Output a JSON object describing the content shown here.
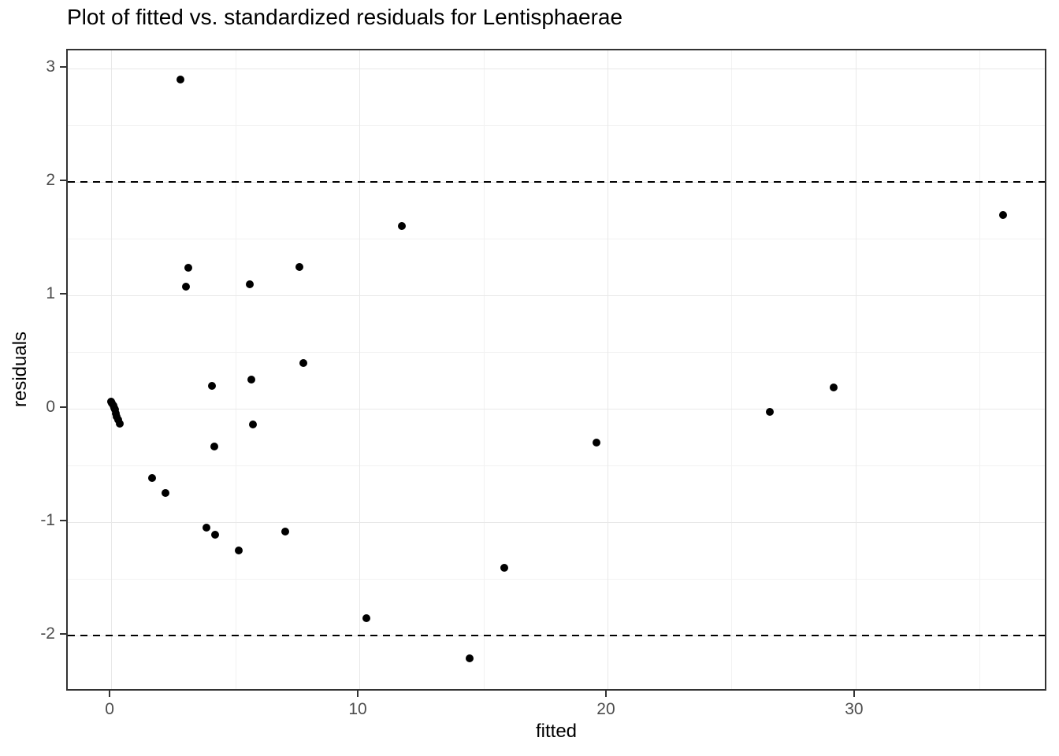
{
  "chart_data": {
    "type": "scatter",
    "title": "Plot of fitted vs. standardized residuals for Lentisphaerae",
    "xlabel": "fitted",
    "ylabel": "residuals",
    "xlim": [
      -1.75,
      37.75
    ],
    "ylim": [
      -2.5,
      3.16
    ],
    "grid": true,
    "legend": "none",
    "x_major_ticks": [
      {
        "value": 0,
        "label": "0"
      },
      {
        "value": 10,
        "label": "10"
      },
      {
        "value": 20,
        "label": "20"
      },
      {
        "value": 30,
        "label": "30"
      }
    ],
    "x_minor_gridlines": [
      5,
      15,
      25,
      35
    ],
    "y_major_ticks": [
      {
        "value": 3,
        "label": "3"
      },
      {
        "value": 2,
        "label": "2"
      },
      {
        "value": 1,
        "label": "1"
      },
      {
        "value": 0,
        "label": "0"
      },
      {
        "value": -1,
        "label": "-1"
      },
      {
        "value": -2,
        "label": "-2"
      }
    ],
    "y_minor_gridlines": [
      2.5,
      1.5,
      0.5,
      -0.5,
      -1.5
    ],
    "reference_lines": [
      {
        "y": 2,
        "style": "dashed",
        "color": "#000000"
      },
      {
        "y": -2,
        "style": "dashed",
        "color": "#000000"
      }
    ],
    "points": [
      [
        0.0,
        0.06
      ],
      [
        0.04,
        0.05
      ],
      [
        0.08,
        0.03
      ],
      [
        0.12,
        0.01
      ],
      [
        0.15,
        -0.01
      ],
      [
        0.19,
        -0.04
      ],
      [
        0.23,
        -0.07
      ],
      [
        0.28,
        -0.1
      ],
      [
        0.33,
        -0.13
      ],
      [
        1.65,
        -0.61
      ],
      [
        2.2,
        -0.74
      ],
      [
        2.8,
        2.9
      ],
      [
        3.0,
        1.08
      ],
      [
        3.1,
        1.24
      ],
      [
        3.85,
        -1.05
      ],
      [
        4.05,
        0.2
      ],
      [
        4.15,
        -0.33
      ],
      [
        4.2,
        -1.11
      ],
      [
        5.15,
        -1.25
      ],
      [
        5.6,
        1.1
      ],
      [
        5.65,
        0.26
      ],
      [
        5.7,
        -0.14
      ],
      [
        7.0,
        -1.08
      ],
      [
        7.6,
        1.25
      ],
      [
        7.75,
        0.4
      ],
      [
        10.3,
        -1.85
      ],
      [
        11.7,
        1.61
      ],
      [
        14.45,
        -2.2
      ],
      [
        15.85,
        -1.4
      ],
      [
        19.55,
        -0.3
      ],
      [
        26.55,
        -0.03
      ],
      [
        29.1,
        0.19
      ],
      [
        35.95,
        1.71
      ]
    ],
    "colors": {
      "point": "#000000",
      "grid_major": "#e8e8e8",
      "grid_minor": "#f2f2f2",
      "panel_border": "#333333",
      "tick": "#333333",
      "tick_label": "#4d4d4d",
      "title": "#000000"
    }
  }
}
